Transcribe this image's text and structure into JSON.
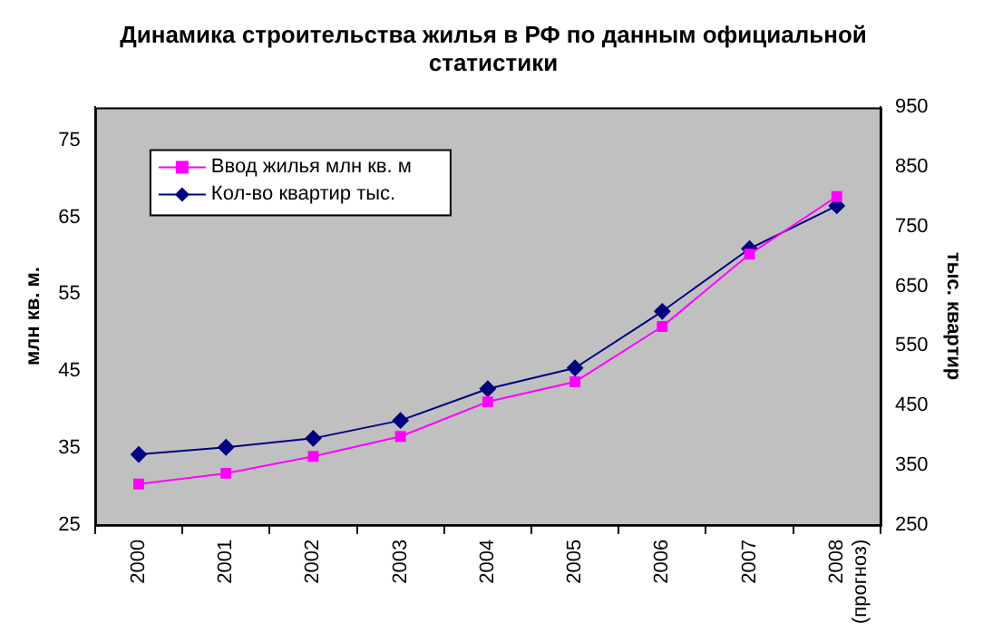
{
  "chart_data": {
    "type": "line",
    "title": "Динамика строительства жилья в РФ по данным официальной статистики",
    "ylabel": "млн кв. м.",
    "y2label": "тыс. квартир",
    "categories": [
      "2000",
      "2001",
      "2002",
      "2003",
      "2004",
      "2005",
      "2006",
      "2007",
      "2008 (прогноз)"
    ],
    "series": [
      {
        "name": "Ввод жилья млн кв. м",
        "color": "#ff00ff",
        "marker": "square",
        "values": [
          30.3,
          31.7,
          33.9,
          36.5,
          41.0,
          43.6,
          50.8,
          60.2,
          67.7
        ]
      },
      {
        "name": "Кол-во квартир тыс.",
        "color": "#000080",
        "marker": "diamond",
        "axis": "y2",
        "values": [
          368,
          380,
          395,
          425,
          478,
          513,
          608,
          713,
          785
        ]
      }
    ],
    "ylim": [
      25,
      79.3
    ],
    "yticks": [
      25,
      35,
      45,
      55,
      65,
      75
    ],
    "y2lim": [
      250,
      950
    ],
    "y2ticks": [
      250,
      350,
      450,
      550,
      650,
      750,
      850,
      950
    ],
    "grid": false,
    "legend": "top left"
  }
}
